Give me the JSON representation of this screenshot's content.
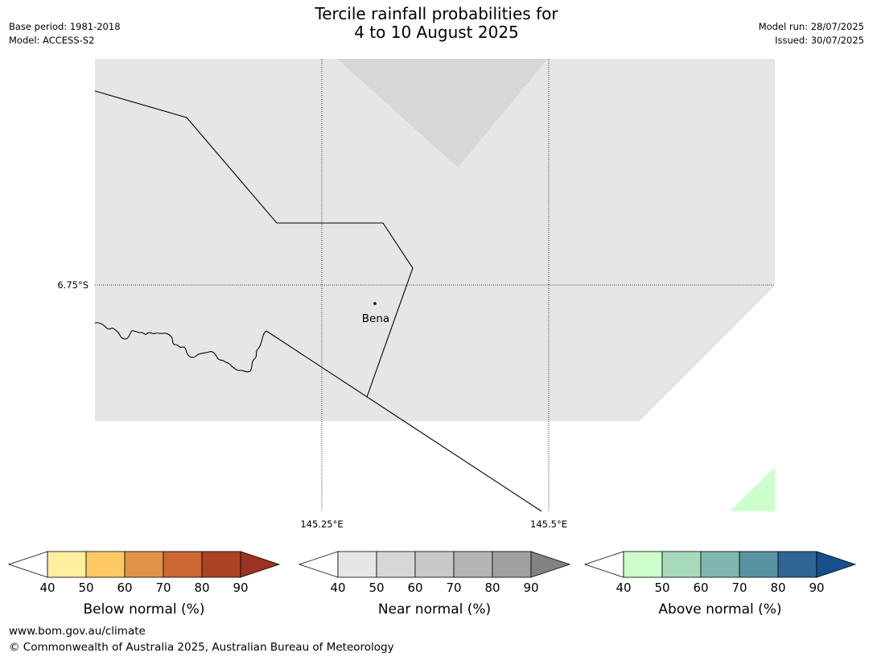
{
  "header": {
    "title_line1": "Tercile rainfall probabilities for",
    "title_line2": "4 to 10 August 2025",
    "base_period": "Base period: 1981-2018",
    "model": "Model: ACCESS-S2",
    "model_run": "Model run: 28/07/2025",
    "issued": "Issued: 30/07/2025"
  },
  "map": {
    "place_label": "Bena",
    "lat_label": "6.75°S",
    "lon_labels": [
      "145.25°E",
      "145.5°E"
    ],
    "colors": {
      "near_normal_40_50": "#e6e6e6",
      "near_normal_50_60": "#d7d7d7",
      "above_normal_40_50": "#ccffcc"
    }
  },
  "legends": [
    {
      "label": "Below normal (%)",
      "ticks": [
        "40",
        "50",
        "60",
        "70",
        "80",
        "90"
      ],
      "colors": [
        "#ffeda0",
        "#fec965",
        "#e0924a",
        "#cc6633",
        "#aa4422"
      ],
      "extend_color": "#993322"
    },
    {
      "label": "Near normal (%)",
      "ticks": [
        "40",
        "50",
        "60",
        "70",
        "80",
        "90"
      ],
      "colors": [
        "#e6e6e6",
        "#d7d7d7",
        "#c8c8c8",
        "#b4b4b4",
        "#a0a0a0"
      ],
      "extend_color": "#828282"
    },
    {
      "label": "Above normal (%)",
      "ticks": [
        "40",
        "50",
        "60",
        "70",
        "80",
        "90"
      ],
      "colors": [
        "#ccffcc",
        "#a6dabb",
        "#80b6b0",
        "#5893a2",
        "#2f6496"
      ],
      "extend_color": "#154f8c"
    }
  ],
  "footer": {
    "url": "www.bom.gov.au/climate",
    "copyright": "© Commonwealth of Australia 2025, Australian Bureau of Meteorology"
  }
}
